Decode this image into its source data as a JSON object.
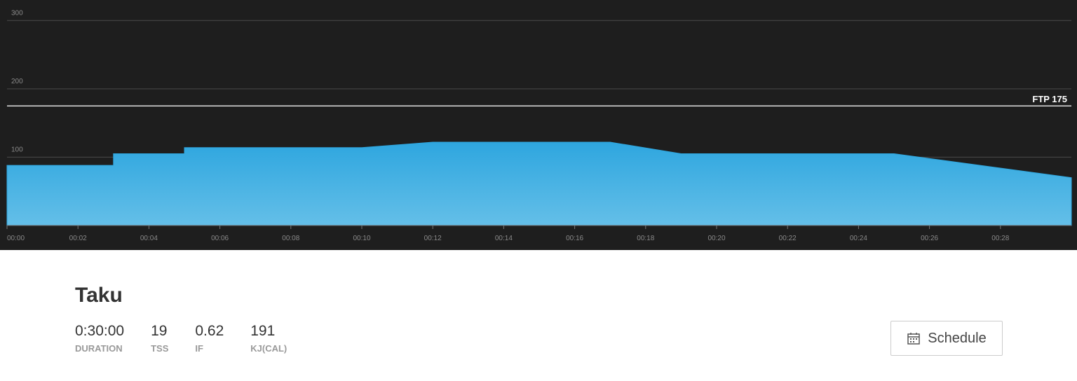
{
  "chart_data": {
    "type": "area",
    "x": [
      0,
      3,
      3,
      5,
      5,
      10,
      12,
      17,
      19,
      25,
      30
    ],
    "values": [
      88,
      88,
      105,
      105,
      114,
      114,
      122,
      122,
      105,
      105,
      70
    ],
    "color": "#2ea6df",
    "xlim": [
      0,
      30
    ],
    "xticks": [
      {
        "value": 0,
        "label": "00:00"
      },
      {
        "value": 2,
        "label": "00:02"
      },
      {
        "value": 4,
        "label": "00:04"
      },
      {
        "value": 6,
        "label": "00:06"
      },
      {
        "value": 8,
        "label": "00:08"
      },
      {
        "value": 10,
        "label": "00:10"
      },
      {
        "value": 12,
        "label": "00:12"
      },
      {
        "value": 14,
        "label": "00:14"
      },
      {
        "value": 16,
        "label": "00:16"
      },
      {
        "value": 18,
        "label": "00:18"
      },
      {
        "value": 20,
        "label": "00:20"
      },
      {
        "value": 22,
        "label": "00:22"
      },
      {
        "value": 24,
        "label": "00:24"
      },
      {
        "value": 26,
        "label": "00:26"
      },
      {
        "value": 28,
        "label": "00:28"
      }
    ],
    "ylim": [
      0,
      330
    ],
    "yticks": [
      100,
      200,
      300
    ],
    "grid": true,
    "ftp": {
      "value": 175,
      "label": "FTP 175"
    }
  },
  "workout": {
    "title": "Taku",
    "stats": [
      {
        "value": "0:30:00",
        "label": "DURATION"
      },
      {
        "value": 19,
        "label": "TSS"
      },
      {
        "value": 0.62,
        "label": "IF"
      },
      {
        "value": 191,
        "label": "KJ(CAL)"
      }
    ],
    "button": "Schedule"
  }
}
